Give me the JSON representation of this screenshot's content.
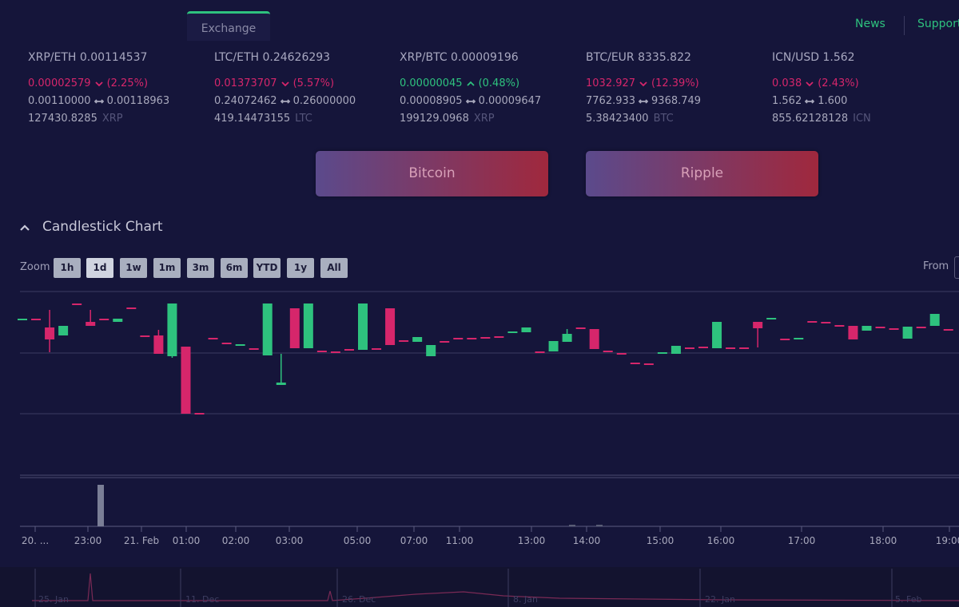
{
  "header": {
    "tab": "Exchange",
    "links": [
      "News",
      "Support"
    ]
  },
  "tickers": [
    {
      "pair": "XRP/ETH 0.00114537",
      "change": "0.00002579",
      "percent": "(2.25%)",
      "direction": "down",
      "low": "0.00110000",
      "high": "0.00118963",
      "volume": "127430.8285",
      "unit": "XRP"
    },
    {
      "pair": "LTC/ETH 0.24626293",
      "change": "0.01373707",
      "percent": "(5.57%)",
      "direction": "down",
      "low": "0.24072462",
      "high": "0.26000000",
      "volume": "419.14473155",
      "unit": "LTC"
    },
    {
      "pair": "XRP/BTC 0.00009196",
      "change": "0.00000045",
      "percent": "(0.48%)",
      "direction": "up",
      "low": "0.00008905",
      "high": "0.00009647",
      "volume": "199129.0968",
      "unit": "XRP"
    },
    {
      "pair": "BTC/EUR 8335.822",
      "change": "1032.927",
      "percent": "(12.39%)",
      "direction": "down",
      "low": "7762.933",
      "high": "9368.749",
      "volume": "5.38423400",
      "unit": "BTC"
    },
    {
      "pair": "ICN/USD 1.562",
      "change": "0.038",
      "percent": "(2.43%)",
      "direction": "down",
      "low": "1.562",
      "high": "1.600",
      "volume": "855.62128128",
      "unit": "ICN"
    }
  ],
  "buttons": [
    "Bitcoin",
    "Ripple"
  ],
  "section_title": "Candlestick Chart",
  "zoom": {
    "label": "Zoom",
    "options": [
      "1h",
      "1d",
      "1w",
      "1m",
      "3m",
      "6m",
      "YTD",
      "1y",
      "All"
    ],
    "from": "From"
  },
  "chart_data": {
    "type": "candlestick",
    "up_color": "#2ec27e",
    "down_color": "#d6266b",
    "ylim": [
      0,
      235
    ],
    "candles": [
      [
        199,
        201,
        199,
        201
      ],
      [
        201,
        201,
        199,
        199
      ],
      [
        190,
        212,
        159,
        175
      ],
      [
        180,
        192,
        180,
        192
      ],
      [
        220,
        220,
        218,
        218
      ],
      [
        197,
        212,
        192,
        192
      ],
      [
        201,
        201,
        199,
        199
      ],
      [
        197,
        201,
        197,
        201
      ],
      [
        215,
        215,
        213,
        213
      ],
      [
        180,
        180,
        178,
        178
      ],
      [
        180,
        187,
        157,
        157
      ],
      [
        154,
        220,
        152,
        220
      ],
      [
        166,
        166,
        82,
        82
      ],
      [
        83,
        83,
        81,
        81
      ],
      [
        177,
        177,
        175,
        175
      ],
      [
        171,
        171,
        169,
        169
      ],
      [
        167,
        169,
        167,
        169
      ],
      [
        164,
        164,
        162,
        162
      ],
      [
        155,
        220,
        155,
        220
      ],
      [
        118,
        157,
        118,
        121
      ],
      [
        214,
        214,
        164,
        164
      ],
      [
        164,
        220,
        164,
        220
      ],
      [
        161,
        161,
        159,
        159
      ],
      [
        160,
        160,
        158,
        158
      ],
      [
        163,
        163,
        161,
        161
      ],
      [
        162,
        220,
        162,
        220
      ],
      [
        164,
        164,
        162,
        162
      ],
      [
        214,
        214,
        168,
        168
      ],
      [
        174,
        174,
        172,
        172
      ],
      [
        172,
        178,
        172,
        178
      ],
      [
        154,
        168,
        154,
        168
      ],
      [
        173,
        173,
        171,
        171
      ],
      [
        177,
        177,
        175,
        175
      ],
      [
        177,
        177,
        175,
        175
      ],
      [
        178,
        178,
        176,
        176
      ],
      [
        179,
        179,
        177,
        177
      ],
      [
        183,
        185,
        183,
        185
      ],
      [
        184,
        190,
        184,
        190
      ],
      [
        160,
        160,
        158,
        158
      ],
      [
        160,
        173,
        160,
        173
      ],
      [
        172,
        188,
        172,
        182
      ],
      [
        190,
        190,
        188,
        188
      ],
      [
        188,
        188,
        163,
        163
      ],
      [
        161,
        161,
        159,
        159
      ],
      [
        158,
        158,
        156,
        156
      ],
      [
        146,
        146,
        144,
        144
      ],
      [
        145,
        145,
        143,
        143
      ],
      [
        157,
        159,
        157,
        159
      ],
      [
        157,
        167,
        157,
        167
      ],
      [
        165,
        165,
        163,
        163
      ],
      [
        166,
        166,
        164,
        164
      ],
      [
        164,
        197,
        164,
        197
      ],
      [
        165,
        165,
        163,
        163
      ],
      [
        165,
        165,
        163,
        163
      ],
      [
        197,
        197,
        165,
        189
      ],
      [
        200,
        202,
        200,
        202
      ],
      [
        176,
        176,
        174,
        174
      ],
      [
        175,
        177,
        175,
        177
      ],
      [
        198,
        198,
        196,
        196
      ],
      [
        197,
        197,
        195,
        195
      ],
      [
        193,
        193,
        191,
        191
      ],
      [
        192,
        192,
        175,
        175
      ],
      [
        186,
        192,
        186,
        192
      ],
      [
        191,
        191,
        189,
        189
      ],
      [
        189,
        189,
        187,
        187
      ],
      [
        176,
        191,
        176,
        191
      ],
      [
        191,
        191,
        189,
        189
      ],
      [
        192,
        207,
        192,
        207
      ],
      [
        188,
        188,
        186,
        186
      ]
    ],
    "x_labels": [
      "20. ...",
      "23:00",
      "21. Feb",
      "01:00",
      "02:00",
      "03:00",
      "05:00",
      "07:00",
      "11:00",
      "13:00",
      "14:00",
      "15:00",
      "16:00",
      "17:00",
      "18:00",
      "19:00"
    ],
    "navigator_labels": [
      "25. Jan",
      "11. Dec",
      "26. Dec",
      "8. Jan",
      "22. Jan",
      "5. Feb"
    ]
  }
}
